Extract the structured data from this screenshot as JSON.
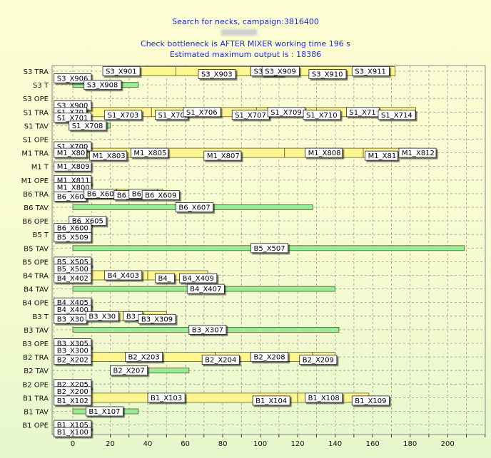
{
  "header": {
    "line1": "Search for necks, campaign:3816400",
    "line2": "Check bottleneck is AFTER MIXER working time 196 s",
    "line3": "Estimated maximum output is : 18386"
  },
  "colors": {
    "yellow_bar": "#fcf590",
    "green_bar": "#96ec96",
    "bar_border": "#5a5a2a",
    "title": "#1c2bd0"
  },
  "chart_data": {
    "type": "bar",
    "orientation": "horizontal-gantt",
    "title": "Search for necks, campaign:3816400",
    "xlim": [
      -10,
      222
    ],
    "xticks": [
      0,
      20,
      40,
      60,
      80,
      100,
      120,
      140,
      160,
      180,
      200
    ],
    "grid": true,
    "rows": [
      "S3 TRA",
      "S3 T",
      "S3 OPE",
      "S1 TRA",
      "S1 TAV",
      "S1 OPE",
      "M1 TRA",
      "M1 T",
      "M1 OPE",
      "B6 TRA",
      "B6 TAV",
      "B6 OPE",
      "B5 T",
      "B5 TAV",
      "B5 OPE",
      "B4 TRA",
      "B4 TAV",
      "B4 OPE",
      "B3 T",
      "B3 TAV",
      "B3 OPE",
      "B2 TRA",
      "B2 TAV",
      "B2 OPE",
      "B1 TRA",
      "B1 TAV",
      "B1 OPE"
    ],
    "bars": [
      {
        "row": 0,
        "start": 18,
        "end": 55,
        "color": "yellow",
        "label": "S3_X901"
      },
      {
        "row": 0,
        "start": 55,
        "end": 95,
        "color": "yellow",
        "label": "S3_X903"
      },
      {
        "row": 0,
        "start": 95,
        "end": 120,
        "color": "yellow",
        "label": "S3_X909"
      },
      {
        "row": 0,
        "start": 120,
        "end": 152,
        "color": "yellow",
        "label": "S3_X910"
      },
      {
        "row": 0,
        "start": 152,
        "end": 172,
        "color": "yellow",
        "label": "S3_X911"
      },
      {
        "row": 1,
        "start": 0,
        "end": 35,
        "color": "green",
        "label": "S3_X908"
      },
      {
        "row": 3,
        "start": 0,
        "end": 42,
        "color": "yellow",
        "label": "S1_X703"
      },
      {
        "row": 3,
        "start": 42,
        "end": 70,
        "color": "yellow",
        "label": "S1_X705"
      },
      {
        "row": 3,
        "start": 70,
        "end": 98,
        "color": "yellow",
        "label": "S1_X707"
      },
      {
        "row": 3,
        "start": 98,
        "end": 130,
        "color": "yellow",
        "label": "S1_X710"
      },
      {
        "row": 3,
        "start": 130,
        "end": 183,
        "color": "yellow",
        "label": "S1_X714"
      },
      {
        "row": 4,
        "start": 0,
        "end": 20,
        "color": "green",
        "label": "S1_X708"
      },
      {
        "row": 6,
        "start": 0,
        "end": 38,
        "color": "yellow",
        "label": "M1_X803"
      },
      {
        "row": 6,
        "start": 38,
        "end": 113,
        "color": "yellow",
        "label": "M1_X807"
      },
      {
        "row": 6,
        "start": 113,
        "end": 155,
        "color": "yellow",
        "label": "M1_X808"
      },
      {
        "row": 6,
        "start": 155,
        "end": 183,
        "color": "yellow",
        "label": "M1_X812"
      },
      {
        "row": 9,
        "start": 0,
        "end": 48,
        "color": "yellow",
        "label": "B6_X609"
      },
      {
        "row": 10,
        "start": 0,
        "end": 128,
        "color": "green",
        "label": "B6_X607"
      },
      {
        "row": 13,
        "start": 0,
        "end": 209,
        "color": "green",
        "label": "B5_X507"
      },
      {
        "row": 15,
        "start": 0,
        "end": 40,
        "color": "yellow",
        "label": "B4_X403"
      },
      {
        "row": 15,
        "start": 40,
        "end": 72,
        "color": "yellow",
        "label": "B4_X409"
      },
      {
        "row": 16,
        "start": 0,
        "end": 140,
        "color": "green",
        "label": "B4_X407"
      },
      {
        "row": 18,
        "start": 0,
        "end": 50,
        "color": "yellow",
        "label": "B3_X309"
      },
      {
        "row": 19,
        "start": 0,
        "end": 142,
        "color": "green",
        "label": "B3_X307"
      },
      {
        "row": 21,
        "start": 0,
        "end": 76,
        "color": "yellow",
        "label": "B2_X203"
      },
      {
        "row": 21,
        "start": 76,
        "end": 100,
        "color": "yellow",
        "label": "B2_X204"
      },
      {
        "row": 21,
        "start": 100,
        "end": 128,
        "color": "yellow",
        "label": "B2_X208"
      },
      {
        "row": 21,
        "start": 128,
        "end": 140,
        "color": "yellow",
        "label": "B2_X209"
      },
      {
        "row": 22,
        "start": 20,
        "end": 62,
        "color": "green",
        "label": "B2_X207"
      },
      {
        "row": 24,
        "start": 0,
        "end": 120,
        "color": "yellow",
        "label": "B1_X103"
      },
      {
        "row": 24,
        "start": 120,
        "end": 158,
        "color": "yellow",
        "label": "B1_X108"
      },
      {
        "row": 25,
        "start": 0,
        "end": 35,
        "color": "green",
        "label": "B1_X107"
      }
    ],
    "labels": [
      {
        "text": "S3_X901",
        "x": 16,
        "row": 0,
        "dy": 0
      },
      {
        "text": "S3_X906",
        "x": -10,
        "row": 0,
        "dy": 10
      },
      {
        "text": "S3_X903",
        "x": 67,
        "row": 0,
        "dy": 4
      },
      {
        "text": "S3_X90",
        "x": 95,
        "row": 0,
        "dy": 0
      },
      {
        "text": "S3_X909",
        "x": 101,
        "row": 0,
        "dy": 0
      },
      {
        "text": "S3_X910",
        "x": 126,
        "row": 0,
        "dy": 4
      },
      {
        "text": "S3_X911",
        "x": 149,
        "row": 0,
        "dy": 0
      },
      {
        "text": "S3_X908",
        "x": 6,
        "row": 1,
        "dy": 0
      },
      {
        "text": "S3_X900",
        "x": -10,
        "row": 2,
        "dy": 10
      },
      {
        "text": "S1_X70",
        "x": -10,
        "row": 3,
        "dy": 0
      },
      {
        "text": "S1_X701",
        "x": -10,
        "row": 3,
        "dy": 8
      },
      {
        "text": "S1_X703",
        "x": 17,
        "row": 3,
        "dy": 4
      },
      {
        "text": "S1_X70",
        "x": 44,
        "row": 3,
        "dy": 4
      },
      {
        "text": "S1_X706",
        "x": 59,
        "row": 3,
        "dy": 0
      },
      {
        "text": "S1_X707",
        "x": 85,
        "row": 3,
        "dy": 4
      },
      {
        "text": "S1_X709",
        "x": 104,
        "row": 3,
        "dy": 0
      },
      {
        "text": "S1_X710",
        "x": 123,
        "row": 3,
        "dy": 4
      },
      {
        "text": "S1_X71",
        "x": 146,
        "row": 3,
        "dy": 0
      },
      {
        "text": "S1_X714",
        "x": 163,
        "row": 3,
        "dy": 4
      },
      {
        "text": "S1_X708",
        "x": -2,
        "row": 4,
        "dy": 0
      },
      {
        "text": "S1_X700",
        "x": -10,
        "row": 5,
        "dy": 10
      },
      {
        "text": "M1_X80",
        "x": -10,
        "row": 6,
        "dy": 0
      },
      {
        "text": "M1_X803",
        "x": 9,
        "row": 6,
        "dy": 4
      },
      {
        "text": "M1_X805",
        "x": 31,
        "row": 6,
        "dy": 0
      },
      {
        "text": "M1_X807",
        "x": 70,
        "row": 6,
        "dy": 4
      },
      {
        "text": "M1_X808",
        "x": 124,
        "row": 6,
        "dy": 0
      },
      {
        "text": "M1_X81",
        "x": 156,
        "row": 6,
        "dy": 4
      },
      {
        "text": "M1_X812",
        "x": 174,
        "row": 6,
        "dy": 0
      },
      {
        "text": "M1_X809",
        "x": -10,
        "row": 7,
        "dy": 0
      },
      {
        "text": "M1_X811",
        "x": -10,
        "row": 8,
        "dy": 0
      },
      {
        "text": "M1_X800",
        "x": -10,
        "row": 8,
        "dy": 10
      },
      {
        "text": "B6_X60",
        "x": -10,
        "row": 9,
        "dy": 4
      },
      {
        "text": "B6_X60",
        "x": 6,
        "row": 9,
        "dy": 0
      },
      {
        "text": "B6_X6",
        "x": 22,
        "row": 9,
        "dy": 2
      },
      {
        "text": "B6_X6",
        "x": 30,
        "row": 9,
        "dy": 0
      },
      {
        "text": "B6_X609",
        "x": 37,
        "row": 9,
        "dy": 2
      },
      {
        "text": "B6_X607",
        "x": 55,
        "row": 10,
        "dy": 0
      },
      {
        "text": "B6_X605",
        "x": -2,
        "row": 11,
        "dy": 0
      },
      {
        "text": "B6_X600",
        "x": -10,
        "row": 11,
        "dy": 10
      },
      {
        "text": "B5_X509",
        "x": -10,
        "row": 12,
        "dy": 4
      },
      {
        "text": "B5_X507",
        "x": 95,
        "row": 13,
        "dy": 0
      },
      {
        "text": "B5_X505",
        "x": -10,
        "row": 14,
        "dy": 0
      },
      {
        "text": "B5_X500",
        "x": -10,
        "row": 14,
        "dy": 10
      },
      {
        "text": "B4_X402",
        "x": -10,
        "row": 15,
        "dy": 4
      },
      {
        "text": "B4_X403",
        "x": 17,
        "row": 15,
        "dy": 0
      },
      {
        "text": "B4_",
        "x": 44,
        "row": 15,
        "dy": 4
      },
      {
        "text": "B4_X409",
        "x": 57,
        "row": 15,
        "dy": 4
      },
      {
        "text": "B4_X407",
        "x": 61,
        "row": 16,
        "dy": 0
      },
      {
        "text": "B4_X405",
        "x": -10,
        "row": 17,
        "dy": 0
      },
      {
        "text": "B4_X400",
        "x": -10,
        "row": 17,
        "dy": 10
      },
      {
        "text": "B3_X30",
        "x": -10,
        "row": 18,
        "dy": 4
      },
      {
        "text": "B3_X30",
        "x": 7,
        "row": 18,
        "dy": 0
      },
      {
        "text": "B3_",
        "x": 27,
        "row": 18,
        "dy": 0
      },
      {
        "text": "B3_X309",
        "x": 35,
        "row": 18,
        "dy": 4
      },
      {
        "text": "B3_X307",
        "x": 62,
        "row": 19,
        "dy": 0
      },
      {
        "text": "B3_X305",
        "x": -10,
        "row": 20,
        "dy": 0
      },
      {
        "text": "B3_X300",
        "x": -10,
        "row": 20,
        "dy": 10
      },
      {
        "text": "B2_X202",
        "x": -10,
        "row": 21,
        "dy": 4
      },
      {
        "text": "B2_X203",
        "x": 28,
        "row": 21,
        "dy": 0
      },
      {
        "text": "B2_X204",
        "x": 69,
        "row": 21,
        "dy": 4
      },
      {
        "text": "B2_X208",
        "x": 95,
        "row": 21,
        "dy": 0
      },
      {
        "text": "B2_X209",
        "x": 121,
        "row": 21,
        "dy": 4
      },
      {
        "text": "B2_X207",
        "x": 20,
        "row": 22,
        "dy": 0
      },
      {
        "text": "B2_X205",
        "x": -10,
        "row": 23,
        "dy": 0
      },
      {
        "text": "B2_X200",
        "x": -10,
        "row": 23,
        "dy": 10
      },
      {
        "text": "B1_X102",
        "x": -10,
        "row": 24,
        "dy": 4
      },
      {
        "text": "B1_X103",
        "x": 40,
        "row": 24,
        "dy": 0
      },
      {
        "text": "B1_X104",
        "x": 96,
        "row": 24,
        "dy": 4
      },
      {
        "text": "B1_X108",
        "x": 124,
        "row": 24,
        "dy": 0
      },
      {
        "text": "B1_X109",
        "x": 149,
        "row": 24,
        "dy": 4
      },
      {
        "text": "B1_X107",
        "x": 7,
        "row": 25,
        "dy": 0
      },
      {
        "text": "B1_X105",
        "x": -10,
        "row": 26,
        "dy": 0
      },
      {
        "text": "B1_X100",
        "x": -10,
        "row": 26,
        "dy": 10
      }
    ]
  }
}
